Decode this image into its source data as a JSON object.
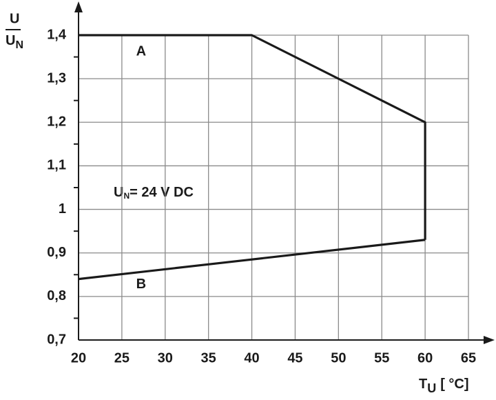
{
  "chart_data": {
    "type": "line",
    "ylabel": {
      "top": "U",
      "bottom": "U",
      "sub": "N"
    },
    "xlabel": {
      "main": "T",
      "sub": "U",
      "unit": "[ °C]"
    },
    "annotation": {
      "main": "U",
      "sub": "N",
      "rest": "= 24 V DC"
    },
    "series": [
      {
        "name": "A",
        "color": "#1a1a1a",
        "x": [
          20,
          40,
          60,
          60
        ],
        "values": [
          1.4,
          1.4,
          1.2,
          0.93
        ]
      },
      {
        "name": "B",
        "color": "#1a1a1a",
        "x": [
          20,
          60
        ],
        "values": [
          0.84,
          0.93
        ]
      }
    ],
    "xlim": [
      20,
      65
    ],
    "xticks": [
      20,
      25,
      30,
      35,
      40,
      45,
      50,
      55,
      60,
      65
    ],
    "ylim": [
      0.7,
      1.4
    ],
    "yticks": [
      {
        "value": 0.7,
        "label": "0,7"
      },
      {
        "value": 0.8,
        "label": "0,8"
      },
      {
        "value": 0.9,
        "label": "0,9"
      },
      1,
      {
        "value": 1.1,
        "label": "1,1"
      },
      {
        "value": 1.2,
        "label": "1,2"
      },
      {
        "value": 1.3,
        "label": "1,3"
      },
      {
        "value": 1.4,
        "label": "1,4"
      }
    ],
    "grid": true
  }
}
